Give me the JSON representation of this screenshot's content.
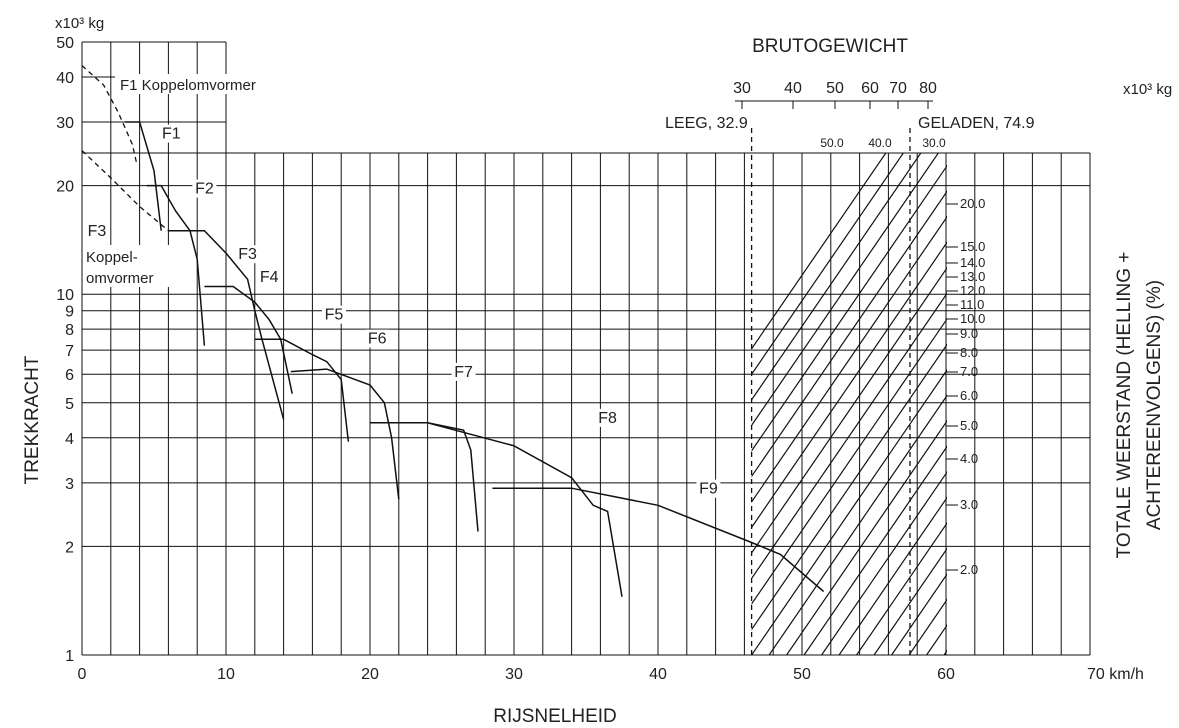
{
  "chart_data": {
    "type": "line",
    "x_axis": {
      "label": "RIJSNELHEID",
      "unit": "km/h",
      "range": [
        0,
        70
      ],
      "ticks": [
        0,
        10,
        20,
        30,
        40,
        50,
        60,
        70
      ],
      "tick_labels": [
        "0",
        "10",
        "20",
        "30",
        "40",
        "50",
        "60",
        "70 km/h"
      ]
    },
    "y_axis": {
      "label": "TREKKRACHT",
      "unit": "x10³ kg",
      "scale": "log",
      "range": [
        1,
        50
      ],
      "ticks": [
        1,
        2,
        3,
        4,
        5,
        6,
        7,
        8,
        9,
        10,
        20,
        30,
        40,
        50
      ],
      "tick_labels": [
        "1",
        "2",
        "3",
        "4",
        "5",
        "6",
        "7",
        "8",
        "9",
        "10",
        "20",
        "30",
        "40",
        "50"
      ]
    },
    "right_axis_label": [
      "TOTALE WEERSTAND (HELLING +",
      "ACHTEREENVOLGENS) (%)"
    ],
    "weight_scale": {
      "title": "BRUTOGEWICHT",
      "unit": "x10³ kg",
      "ticks": [
        "30",
        "40",
        "50",
        "60",
        "70",
        "80"
      ],
      "empty_label": "LEEG, 32.9",
      "loaded_label": "GELADEN, 74.9",
      "empty_speed": 46.5,
      "loaded_speed": 57.5
    },
    "resistance_top_labels": [
      "50.0",
      "40.0",
      "30.0"
    ],
    "resistance_labels": [
      "20.0",
      "15.0",
      "14.0",
      "13.0",
      "12.0",
      "11.0",
      "10.0",
      "9.0",
      "8.0",
      "7.0",
      "6.0",
      "5.0",
      "4.0",
      "3.0",
      "2.0"
    ],
    "converter_labels": {
      "f1": "F1 Koppelomvormer",
      "f3_a": "Koppel-",
      "f3_b": "omvormer"
    },
    "series": [
      {
        "name": "F1",
        "points": [
          [
            3,
            30
          ],
          [
            4,
            30
          ],
          [
            5,
            22
          ],
          [
            5.5,
            15
          ]
        ]
      },
      {
        "name": "F2",
        "points": [
          [
            4.5,
            20
          ],
          [
            5.5,
            20
          ],
          [
            6.5,
            17
          ],
          [
            7.5,
            15
          ],
          [
            8,
            12.5
          ],
          [
            8.5,
            7.2
          ]
        ]
      },
      {
        "name": "F3",
        "points": [
          [
            6,
            15
          ],
          [
            8.5,
            15
          ],
          [
            10,
            13
          ],
          [
            11.5,
            11
          ],
          [
            12,
            9
          ],
          [
            12.5,
            7.5
          ],
          [
            14,
            4.5
          ]
        ]
      },
      {
        "name": "F4",
        "points": [
          [
            8.5,
            10.5
          ],
          [
            10.5,
            10.5
          ],
          [
            12,
            9.5
          ],
          [
            13,
            8.5
          ],
          [
            13.8,
            7.5
          ],
          [
            14.6,
            5.3
          ]
        ]
      },
      {
        "name": "F5",
        "points": [
          [
            12,
            7.5
          ],
          [
            14,
            7.5
          ],
          [
            16,
            6.8
          ],
          [
            17,
            6.5
          ],
          [
            18,
            5.8
          ],
          [
            18.5,
            3.9
          ]
        ]
      },
      {
        "name": "F6",
        "points": [
          [
            14.5,
            6.1
          ],
          [
            17,
            6.2
          ],
          [
            20,
            5.6
          ],
          [
            21,
            5
          ],
          [
            21.5,
            4
          ],
          [
            22,
            2.7
          ]
        ]
      },
      {
        "name": "F7",
        "points": [
          [
            20,
            4.4
          ],
          [
            24,
            4.4
          ],
          [
            26.5,
            4.2
          ],
          [
            27,
            3.7
          ],
          [
            27.5,
            2.2
          ]
        ]
      },
      {
        "name": "F8",
        "points": [
          [
            24,
            4.4
          ],
          [
            30,
            3.8
          ],
          [
            34,
            3.1
          ],
          [
            35.5,
            2.6
          ],
          [
            36.5,
            2.5
          ],
          [
            37.5,
            1.45
          ]
        ]
      },
      {
        "name": "F9",
        "points": [
          [
            28.5,
            2.9
          ],
          [
            34,
            2.9
          ],
          [
            40,
            2.6
          ],
          [
            46.5,
            2.05
          ],
          [
            48.5,
            1.9
          ],
          [
            51.5,
            1.5
          ]
        ]
      }
    ],
    "converter_curves": [
      {
        "name": "F1 Koppelomvormer",
        "points": [
          [
            0,
            43
          ],
          [
            1.5,
            38
          ],
          [
            2.5,
            32
          ],
          [
            3.5,
            26
          ],
          [
            3.8,
            23
          ]
        ]
      },
      {
        "name": "Koppel-omvormer F3",
        "points": [
          [
            0,
            25
          ],
          [
            2,
            21
          ],
          [
            4,
            17.5
          ],
          [
            6,
            15
          ]
        ]
      }
    ],
    "gear_labels": [
      {
        "text": "F1",
        "x": 6.2,
        "y": 27
      },
      {
        "text": "F2",
        "x": 8.5,
        "y": 19
      },
      {
        "text": "F3",
        "x": 11.5,
        "y": 12.5
      },
      {
        "text": "F4",
        "x": 13,
        "y": 10.8
      },
      {
        "text": "F5",
        "x": 17.5,
        "y": 8.5
      },
      {
        "text": "F6",
        "x": 20.5,
        "y": 7.3
      },
      {
        "text": "F7",
        "x": 26.5,
        "y": 5.9
      },
      {
        "text": "F8",
        "x": 36.5,
        "y": 4.4
      },
      {
        "text": "F9",
        "x": 43.5,
        "y": 2.8
      }
    ],
    "grid": true
  }
}
